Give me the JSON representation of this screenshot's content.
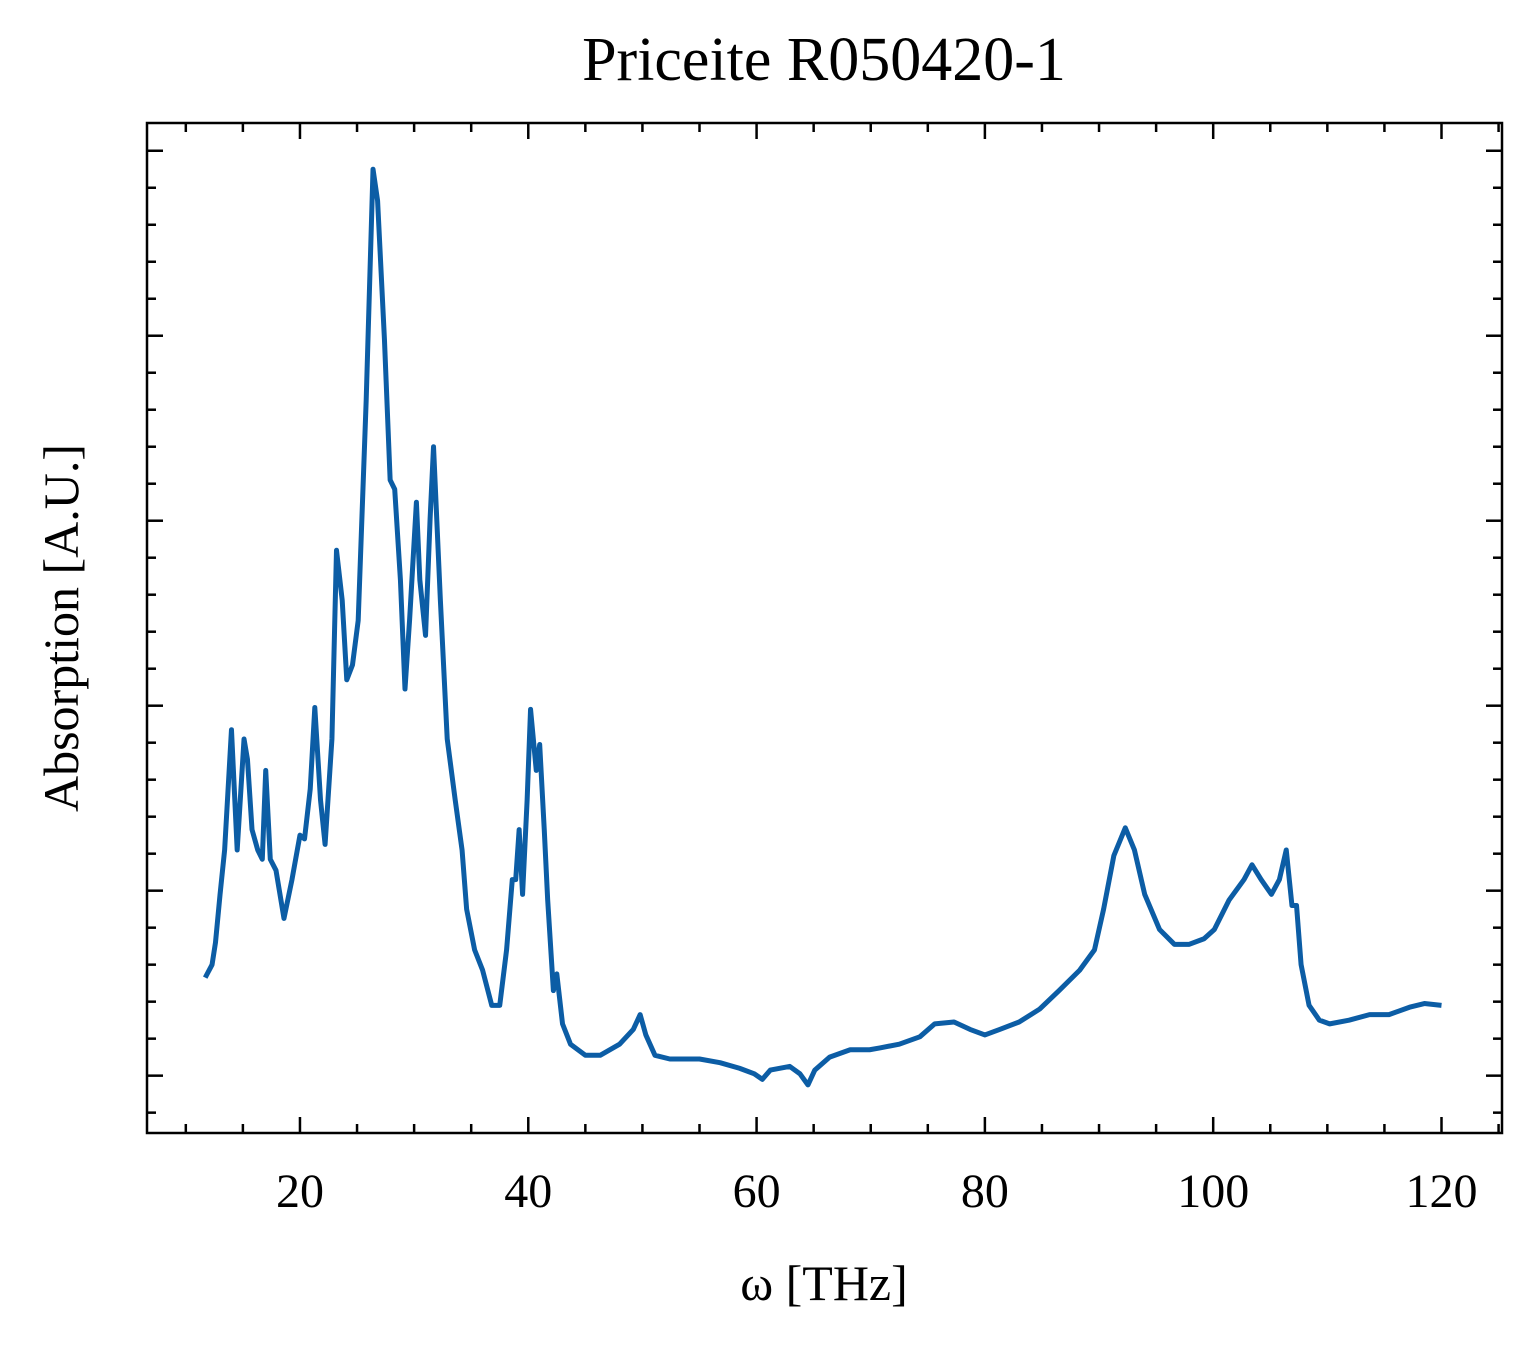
{
  "chart_data": {
    "type": "line",
    "title": "Priceite R050420-1",
    "xlabel": "ω [THz]",
    "ylabel": "Absorption [A.U.]",
    "xlim": [
      6.6,
      125.3
    ],
    "xticks": [
      20,
      40,
      60,
      80,
      100,
      120
    ],
    "xminorticks": [
      10,
      15,
      25,
      30,
      35,
      45,
      50,
      55,
      65,
      70,
      75,
      85,
      90,
      95,
      105,
      110,
      115,
      125
    ],
    "ylim": [
      -0.31,
      5.15
    ],
    "yticks": [
      0,
      1,
      2,
      3,
      4,
      5
    ],
    "ytick_labels": false,
    "yminorticks": [
      -0.2,
      0.2,
      0.4,
      0.6,
      0.8,
      1.2,
      1.4,
      1.6,
      1.8,
      2.2,
      2.4,
      2.6,
      2.8,
      3.2,
      3.4,
      3.6,
      3.8,
      4.2,
      4.4,
      4.6,
      4.8
    ],
    "series": [
      {
        "color": "#0c5da5",
        "x": [
          11.7,
          12.3,
          12.6,
          13.0,
          13.4,
          14.0,
          14.5,
          15.1,
          15.4,
          15.8,
          16.3,
          16.7,
          17.0,
          17.4,
          17.9,
          18.6,
          19.3,
          20.0,
          20.4,
          20.9,
          21.3,
          21.8,
          22.2,
          22.8,
          23.2,
          23.7,
          24.1,
          24.6,
          25.1,
          25.8,
          26.4,
          26.8,
          27.4,
          27.9,
          28.3,
          28.8,
          29.2,
          29.6,
          30.2,
          30.5,
          31.0,
          31.4,
          31.7,
          32.3,
          32.9,
          33.6,
          34.2,
          34.6,
          35.3,
          36.0,
          36.8,
          37.5,
          38.1,
          38.6,
          38.9,
          39.2,
          39.5,
          39.9,
          40.2,
          40.7,
          41.0,
          41.4,
          41.7,
          42.2,
          42.5,
          43.0,
          43.7,
          45.0,
          46.3,
          48.0,
          49.2,
          49.8,
          50.3,
          51.1,
          52.4,
          55.0,
          56.8,
          58.5,
          59.8,
          60.5,
          61.2,
          62.9,
          63.8,
          64.5,
          65.1,
          66.4,
          68.2,
          69.9,
          70.8,
          72.5,
          74.3,
          75.6,
          77.3,
          78.7,
          80.0,
          81.3,
          83.0,
          84.8,
          86.5,
          88.3,
          89.6,
          90.4,
          91.3,
          92.3,
          93.1,
          94.0,
          95.3,
          96.6,
          97.9,
          99.2,
          100.1,
          101.4,
          102.7,
          103.4,
          104.2,
          105.1,
          105.8,
          106.4,
          106.9,
          107.3,
          107.7,
          108.4,
          109.3,
          110.2,
          111.9,
          113.7,
          115.4,
          117.2,
          118.5,
          120.0
        ],
        "values": [
          0.53,
          0.6,
          0.72,
          0.98,
          1.22,
          1.87,
          1.22,
          1.82,
          1.71,
          1.33,
          1.22,
          1.17,
          1.65,
          1.17,
          1.11,
          0.85,
          1.06,
          1.3,
          1.28,
          1.55,
          1.99,
          1.49,
          1.25,
          1.82,
          2.84,
          2.57,
          2.14,
          2.22,
          2.46,
          3.65,
          4.9,
          4.73,
          3.98,
          3.22,
          3.17,
          2.68,
          2.09,
          2.46,
          3.1,
          2.68,
          2.38,
          3.01,
          3.4,
          2.57,
          1.82,
          1.49,
          1.22,
          0.9,
          0.68,
          0.57,
          0.38,
          0.38,
          0.68,
          1.06,
          1.06,
          1.33,
          0.98,
          1.49,
          1.98,
          1.65,
          1.79,
          1.33,
          0.95,
          0.46,
          0.55,
          0.28,
          0.17,
          0.11,
          0.11,
          0.17,
          0.25,
          0.33,
          0.22,
          0.11,
          0.09,
          0.09,
          0.07,
          0.04,
          0.01,
          -0.02,
          0.03,
          0.05,
          0.01,
          -0.05,
          0.03,
          0.1,
          0.14,
          0.14,
          0.15,
          0.17,
          0.21,
          0.28,
          0.29,
          0.25,
          0.22,
          0.25,
          0.29,
          0.36,
          0.46,
          0.57,
          0.68,
          0.9,
          1.19,
          1.34,
          1.22,
          0.98,
          0.79,
          0.71,
          0.71,
          0.74,
          0.79,
          0.95,
          1.06,
          1.14,
          1.06,
          0.98,
          1.06,
          1.22,
          0.92,
          0.92,
          0.6,
          0.38,
          0.3,
          0.28,
          0.3,
          0.33,
          0.33,
          0.37,
          0.39,
          0.38
        ]
      }
    ]
  }
}
